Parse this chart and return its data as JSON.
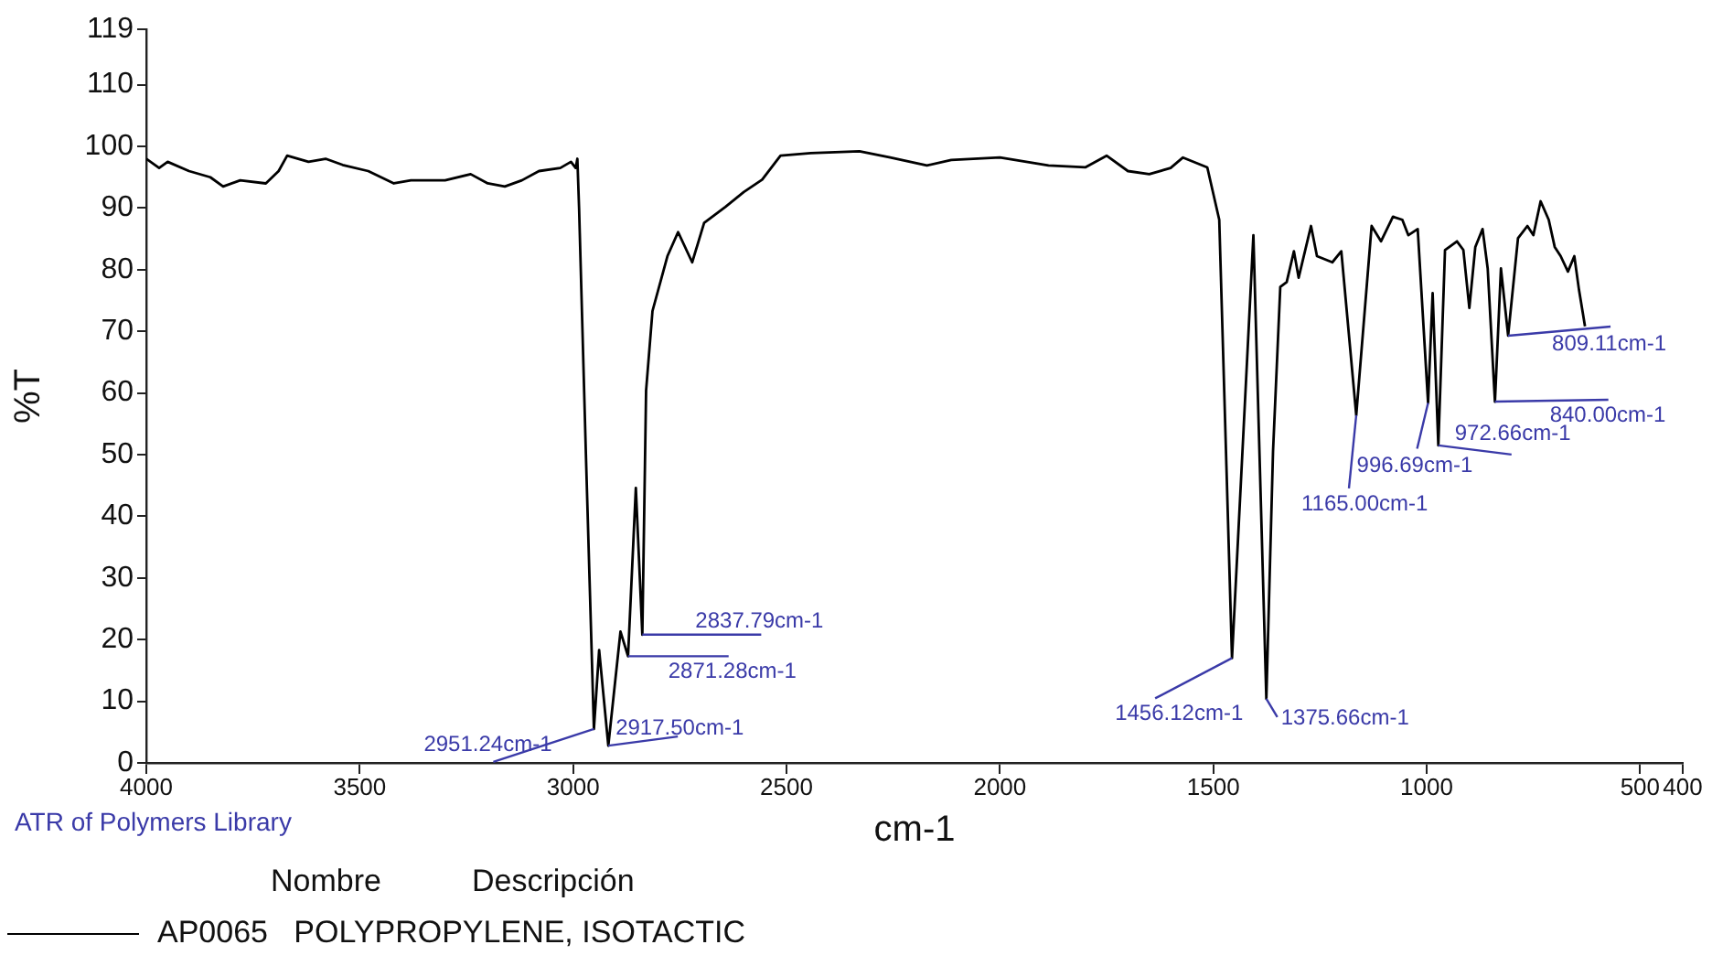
{
  "chart_data": {
    "type": "line",
    "xlabel": "cm-1",
    "ylabel": "%T",
    "xlim": [
      4000,
      400
    ],
    "xticks": [
      4000,
      3500,
      3000,
      2500,
      2000,
      1500,
      1000,
      500,
      400
    ],
    "ylim": [
      0,
      119
    ],
    "yticks": [
      0,
      10,
      20,
      30,
      40,
      50,
      60,
      70,
      80,
      90,
      100,
      110,
      119
    ],
    "grid": false,
    "marker": "none",
    "legend": "bottom left",
    "x": [
      4000,
      3970,
      3950,
      3900,
      3850,
      3820,
      3780,
      3720,
      3690,
      3670,
      3620,
      3580,
      3540,
      3480,
      3420,
      3380,
      3300,
      3240,
      3200,
      3160,
      3120,
      3080,
      3030,
      3005,
      2994,
      2990,
      2986,
      2970,
      2951.24,
      2939,
      2917.5,
      2889,
      2871.28,
      2853,
      2837.79,
      2829,
      2814,
      2779,
      2754,
      2721,
      2693,
      2643,
      2600,
      2557,
      2514,
      2443,
      2329,
      2257,
      2171,
      2114,
      2000,
      1886,
      1800,
      1750,
      1700,
      1650,
      1600,
      1571,
      1514,
      1486,
      1456.12,
      1406,
      1375.66,
      1360,
      1343,
      1328,
      1311,
      1300,
      1271,
      1257,
      1221,
      1200,
      1165,
      1129,
      1107,
      1079,
      1057,
      1043,
      1021,
      996.69,
      986,
      972.66,
      957,
      929,
      914,
      900,
      886,
      869,
      857,
      840,
      826,
      809.11,
      786,
      764,
      750,
      733,
      714,
      700,
      686,
      669,
      654,
      643,
      629
    ],
    "series": [
      {
        "name": "AP0065   POLYPROPYLENE, ISOTACTIC",
        "color": "#000000",
        "values": [
          98,
          96.5,
          97.5,
          96,
          95,
          93.5,
          94.5,
          94,
          96,
          98.5,
          97.5,
          98,
          97,
          96,
          94,
          94.5,
          94.5,
          95.5,
          94,
          93.5,
          94.5,
          96,
          96.5,
          97.5,
          96.5,
          98,
          90,
          50,
          5.5,
          18.3,
          2.8,
          21.3,
          17.3,
          44.6,
          20.8,
          60.4,
          73.3,
          82.2,
          86.1,
          81.2,
          87.6,
          90.2,
          92.6,
          94.6,
          98.5,
          98.9,
          99.2,
          98.2,
          96.9,
          97.8,
          98.2,
          96.9,
          96.6,
          98.5,
          96,
          95.5,
          96.5,
          98.2,
          96.6,
          88.1,
          17,
          85.6,
          10.4,
          50.5,
          77.2,
          78,
          83,
          78.7,
          87.1,
          82.2,
          81.2,
          83,
          56.4,
          87.1,
          84.6,
          88.6,
          88.1,
          85.6,
          86.6,
          58.4,
          76.2,
          51.5,
          83.2,
          84.6,
          83.2,
          73.8,
          83.7,
          86.6,
          80.2,
          58.6,
          80.2,
          69.3,
          85.1,
          87.1,
          85.6,
          91.1,
          88.1,
          83.7,
          82.2,
          79.7,
          82.2,
          76.7,
          70.8
        ]
      }
    ],
    "annotations": [
      {
        "text": "2951.24cm-1",
        "x": 2951.24,
        "y": 5.5
      },
      {
        "text": "2917.50cm-1",
        "x": 2917.5,
        "y": 2.8
      },
      {
        "text": "2871.28cm-1",
        "x": 2871.28,
        "y": 17.3
      },
      {
        "text": "2837.79cm-1",
        "x": 2837.79,
        "y": 20.8
      },
      {
        "text": "1456.12cm-1",
        "x": 1456.12,
        "y": 17
      },
      {
        "text": "1375.66cm-1",
        "x": 1375.66,
        "y": 10.4
      },
      {
        "text": "1165.00cm-1",
        "x": 1165,
        "y": 56.4
      },
      {
        "text": "996.69cm-1",
        "x": 996.69,
        "y": 58.4
      },
      {
        "text": "972.66cm-1",
        "x": 972.66,
        "y": 51.5
      },
      {
        "text": "840.00cm-1",
        "x": 840,
        "y": 58.6
      },
      {
        "text": "809.11cm-1",
        "x": 809.11,
        "y": 69.3
      },
      "ATR of Polymers Library",
      "Nombre",
      "Descripción"
    ]
  }
}
